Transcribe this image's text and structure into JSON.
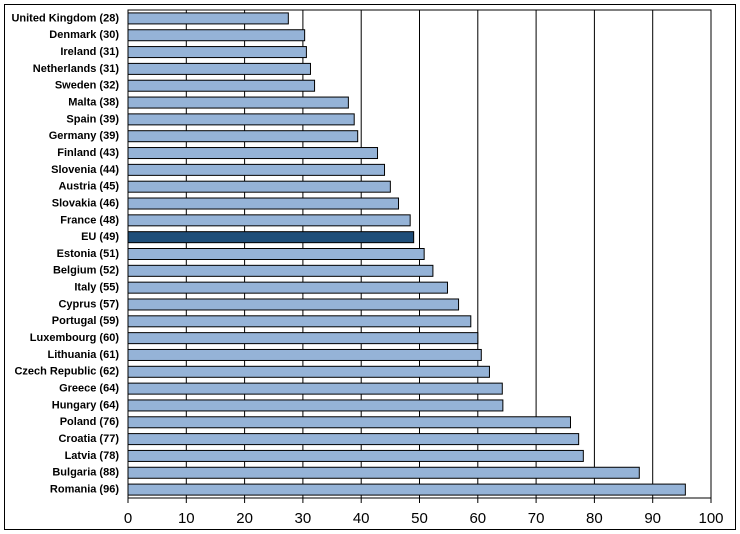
{
  "chart_data": {
    "type": "hbar",
    "categories": [
      "United Kingdom (28)",
      "Denmark (30)",
      "Ireland (31)",
      "Netherlands (31)",
      "Sweden (32)",
      "Malta (38)",
      "Spain (39)",
      "Germany (39)",
      "Finland (43)",
      "Slovenia (44)",
      "Austria (45)",
      "Slovakia (46)",
      "France (48)",
      "EU (49)",
      "Estonia (51)",
      "Belgium (52)",
      "Italy (55)",
      "Cyprus (57)",
      "Portugal (59)",
      "Luxembourg (60)",
      "Lithuania (61)",
      "Czech Republic (62)",
      "Greece (64)",
      "Hungary (64)",
      "Poland (76)",
      "Croatia (77)",
      "Latvia (78)",
      "Bulgaria (88)",
      "Romania (96)"
    ],
    "values": [
      27.5,
      30.3,
      30.6,
      31.3,
      32,
      37.8,
      38.8,
      39.4,
      42.8,
      44,
      45,
      46.4,
      48.4,
      49,
      50.8,
      52.3,
      54.8,
      56.7,
      58.8,
      60,
      60.6,
      62,
      64.2,
      64.3,
      75.9,
      77.3,
      78.1,
      87.7,
      95.6
    ],
    "colors": [
      "#95b3d7",
      "#95b3d7",
      "#95b3d7",
      "#95b3d7",
      "#95b3d7",
      "#95b3d7",
      "#95b3d7",
      "#95b3d7",
      "#95b3d7",
      "#95b3d7",
      "#95b3d7",
      "#95b3d7",
      "#95b3d7",
      "#1f4e79",
      "#95b3d7",
      "#95b3d7",
      "#95b3d7",
      "#95b3d7",
      "#95b3d7",
      "#95b3d7",
      "#95b3d7",
      "#95b3d7",
      "#95b3d7",
      "#95b3d7",
      "#95b3d7",
      "#95b3d7",
      "#95b3d7",
      "#95b3d7",
      "#95b3d7"
    ],
    "xlim": [
      0,
      100
    ],
    "xticks": [
      0,
      10,
      20,
      30,
      40,
      50,
      60,
      70,
      80,
      90,
      100
    ],
    "grid": true
  }
}
